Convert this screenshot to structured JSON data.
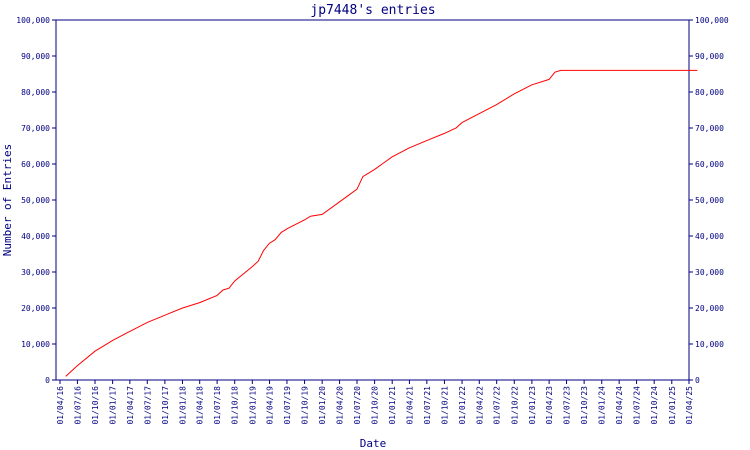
{
  "chart_data": {
    "type": "line",
    "title": "jp7448's entries",
    "xlabel": "Date",
    "ylabel": "Number of Entries",
    "ylim": [
      0,
      100000
    ],
    "grid": false,
    "colors": {
      "axis": "#000080",
      "series": "#ff0000"
    },
    "y_ticks": [
      {
        "value": 0,
        "label": "0"
      },
      {
        "value": 10000,
        "label": "10,000"
      },
      {
        "value": 20000,
        "label": "20,000"
      },
      {
        "value": 30000,
        "label": "30,000"
      },
      {
        "value": 40000,
        "label": "40,000"
      },
      {
        "value": 50000,
        "label": "50,000"
      },
      {
        "value": 60000,
        "label": "60,000"
      },
      {
        "value": 70000,
        "label": "70,000"
      },
      {
        "value": 80000,
        "label": "80,000"
      },
      {
        "value": 90000,
        "label": "90,000"
      },
      {
        "value": 100000,
        "label": "100,000"
      }
    ],
    "x_ticks": [
      "01/04/16",
      "01/07/16",
      "01/10/16",
      "01/01/17",
      "01/04/17",
      "01/07/17",
      "01/10/17",
      "01/01/18",
      "01/04/18",
      "01/07/18",
      "01/10/18",
      "01/01/19",
      "01/04/19",
      "01/07/19",
      "01/10/19",
      "01/01/20",
      "01/04/20",
      "01/07/20",
      "01/10/20",
      "01/01/21",
      "01/04/21",
      "01/07/21",
      "01/10/21",
      "01/01/22",
      "01/04/22",
      "01/07/22",
      "01/10/22",
      "01/01/23",
      "01/04/23",
      "01/07/23",
      "01/10/23",
      "01/01/24",
      "01/04/24",
      "01/07/24",
      "01/10/24",
      "01/01/25",
      "01/04/25"
    ],
    "series": [
      {
        "values": [
          {
            "x": "01/05/16",
            "y": 1000
          },
          {
            "x": "01/07/16",
            "y": 4000
          },
          {
            "x": "01/10/16",
            "y": 8000
          },
          {
            "x": "01/01/17",
            "y": 11000
          },
          {
            "x": "01/04/17",
            "y": 13500
          },
          {
            "x": "01/07/17",
            "y": 16000
          },
          {
            "x": "01/10/17",
            "y": 18000
          },
          {
            "x": "01/01/18",
            "y": 20000
          },
          {
            "x": "01/04/18",
            "y": 21500
          },
          {
            "x": "01/07/18",
            "y": 23500
          },
          {
            "x": "01/08/18",
            "y": 25000
          },
          {
            "x": "01/09/18",
            "y": 25500
          },
          {
            "x": "01/10/18",
            "y": 27500
          },
          {
            "x": "01/01/19",
            "y": 31500
          },
          {
            "x": "01/02/19",
            "y": 33000
          },
          {
            "x": "01/03/19",
            "y": 36000
          },
          {
            "x": "01/04/19",
            "y": 38000
          },
          {
            "x": "01/05/19",
            "y": 39000
          },
          {
            "x": "01/06/19",
            "y": 41000
          },
          {
            "x": "01/07/19",
            "y": 42000
          },
          {
            "x": "01/10/19",
            "y": 44500
          },
          {
            "x": "01/11/19",
            "y": 45500
          },
          {
            "x": "01/01/20",
            "y": 46000
          },
          {
            "x": "01/04/20",
            "y": 49500
          },
          {
            "x": "01/07/20",
            "y": 53000
          },
          {
            "x": "01/08/20",
            "y": 56500
          },
          {
            "x": "01/10/20",
            "y": 58500
          },
          {
            "x": "01/01/21",
            "y": 62000
          },
          {
            "x": "01/04/21",
            "y": 64500
          },
          {
            "x": "01/07/21",
            "y": 66500
          },
          {
            "x": "01/10/21",
            "y": 68500
          },
          {
            "x": "01/12/21",
            "y": 70000
          },
          {
            "x": "01/01/22",
            "y": 71500
          },
          {
            "x": "01/04/22",
            "y": 74000
          },
          {
            "x": "01/07/22",
            "y": 76500
          },
          {
            "x": "01/10/22",
            "y": 79500
          },
          {
            "x": "01/01/23",
            "y": 82000
          },
          {
            "x": "01/04/23",
            "y": 83500
          },
          {
            "x": "01/05/23",
            "y": 85500
          },
          {
            "x": "01/06/23",
            "y": 86000
          },
          {
            "x": "01/07/23",
            "y": 86000
          },
          {
            "x": "01/04/25",
            "y": 86000
          },
          {
            "x": "15/05/25",
            "y": 86000
          }
        ]
      }
    ]
  }
}
